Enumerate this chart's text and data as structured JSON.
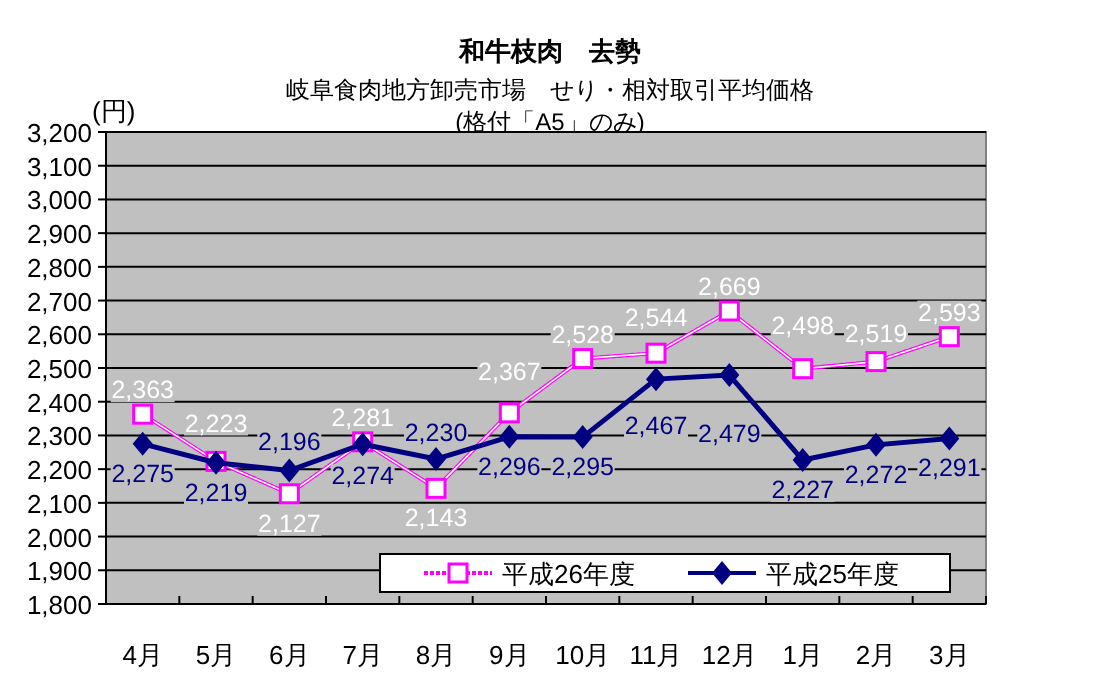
{
  "chart_data": {
    "type": "line",
    "title": "和牛枝肉　去勢",
    "subtitle": "岐阜食肉地方卸売市場　せり・相対取引平均価格\n(格付「A5」のみ)",
    "ylabel": "(円)",
    "categories": [
      "4月",
      "5月",
      "6月",
      "7月",
      "8月",
      "9月",
      "10月",
      "11月",
      "12月",
      "1月",
      "2月",
      "3月"
    ],
    "series": [
      {
        "name": "平成26年度",
        "color": "#ff00ff",
        "marker": "square",
        "line_style": "dotted",
        "values": [
          2363,
          2223,
          2127,
          2281,
          2143,
          2367,
          2528,
          2544,
          2669,
          2498,
          2519,
          2593
        ],
        "value_labels": [
          "2,363",
          "2,223",
          "2,127",
          "2,281",
          "2,143",
          "2,367",
          "2,528",
          "2,544",
          "2,669",
          "2,498",
          "2,519",
          "2,593"
        ]
      },
      {
        "name": "平成25年度",
        "color": "#000080",
        "marker": "diamond",
        "line_style": "solid",
        "values": [
          2275,
          2219,
          2196,
          2274,
          2230,
          2296,
          2295,
          2467,
          2479,
          2227,
          2272,
          2291
        ],
        "value_labels": [
          "2,275",
          "2,219",
          "2,196",
          "2,274",
          "2,230",
          "2,296",
          "2,295",
          "2,467",
          "2,479",
          "2,227",
          "2,272",
          "2,291"
        ]
      }
    ],
    "ylim": [
      1800,
      3200
    ],
    "yticks": [
      {
        "value": 1800,
        "label": "1,800"
      },
      {
        "value": 1900,
        "label": "1,900"
      },
      {
        "value": 2000,
        "label": "2,000"
      },
      {
        "value": 2100,
        "label": "2,100"
      },
      {
        "value": 2200,
        "label": "2,200"
      },
      {
        "value": 2300,
        "label": "2,300"
      },
      {
        "value": 2400,
        "label": "2,400"
      },
      {
        "value": 2500,
        "label": "2,500"
      },
      {
        "value": 2600,
        "label": "2,600"
      },
      {
        "value": 2700,
        "label": "2,700"
      },
      {
        "value": 2800,
        "label": "2,800"
      },
      {
        "value": 2900,
        "label": "2,900"
      },
      {
        "value": 3000,
        "label": "3,000"
      },
      {
        "value": 3100,
        "label": "3,100"
      },
      {
        "value": 3200,
        "label": "3,200"
      }
    ],
    "grid": "y",
    "legend": "bottom right"
  }
}
